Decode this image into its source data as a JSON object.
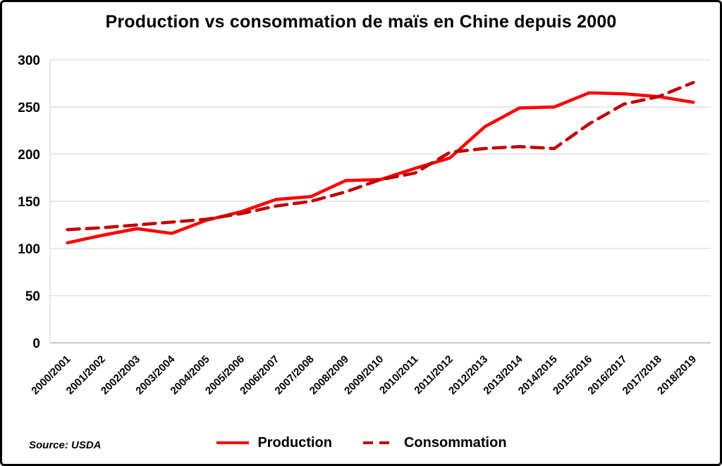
{
  "title": "Production vs consommation de maïs en Chine depuis 2000",
  "source": "Source: USDA",
  "chart_data": {
    "type": "line",
    "categories": [
      "2000/2001",
      "2001/2002",
      "2002/2003",
      "2003/2004",
      "2004/2005",
      "2005/2006",
      "2006/2007",
      "2007/2008",
      "2008/2009",
      "2009/2010",
      "2010/2011",
      "2011/2012",
      "2012/2013",
      "2013/2014",
      "2014/2015",
      "2015/2016",
      "2016/2017",
      "2017/2018",
      "2018/2019"
    ],
    "series": [
      {
        "name": "Production",
        "color": "#FF0000",
        "style": "solid",
        "values": [
          106,
          114,
          121,
          116,
          130,
          139,
          152,
          155,
          172,
          173,
          185,
          196,
          229,
          249,
          250,
          265,
          264,
          261,
          255
        ]
      },
      {
        "name": "Consommation",
        "color": "#C00000",
        "style": "dashed",
        "values": [
          120,
          122,
          125,
          128,
          131,
          137,
          145,
          150,
          160,
          173,
          180,
          202,
          206,
          208,
          206,
          232,
          253,
          261,
          276
        ]
      }
    ],
    "ylim": [
      0,
      300
    ],
    "yticks": [
      0,
      50,
      100,
      150,
      200,
      250,
      300
    ],
    "grid": true,
    "grid_color": "#d9d9d9",
    "axis_color": "#a6a6a6",
    "legend_position": "bottom",
    "xlabel": "",
    "ylabel": ""
  }
}
